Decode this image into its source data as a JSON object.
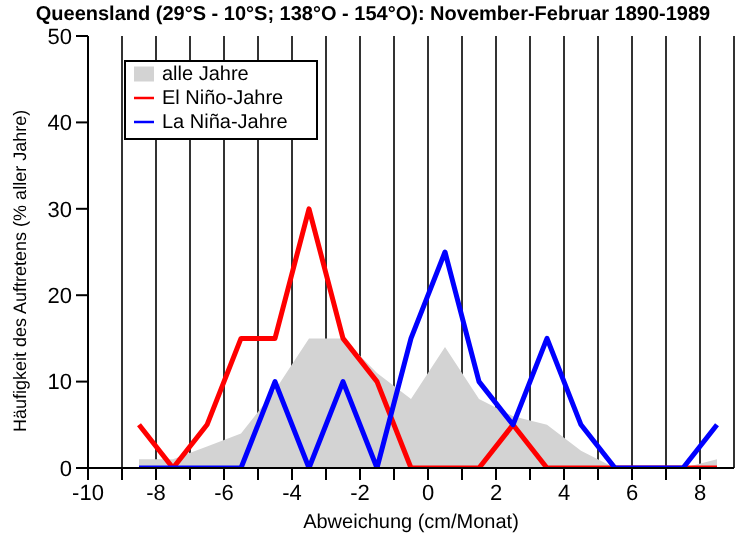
{
  "chart_data": {
    "type": "line",
    "title": "Queensland (29°S - 10°S; 138°O - 154°O): November-Februar 1890-1989",
    "xlabel": "Abweichung (cm/Monat)",
    "ylabel": "Häufigkeit des Auftretens (% aller Jahre)",
    "x": [
      -8.5,
      -7.5,
      -6.5,
      -5.5,
      -4.5,
      -3.5,
      -2.5,
      -1.5,
      -0.5,
      0.5,
      1.5,
      2.5,
      3.5,
      4.5,
      5.5,
      6.5,
      7.5,
      8.5
    ],
    "series": [
      {
        "name": "alle Jahre",
        "type": "area",
        "color": "#d3d3d3",
        "values": [
          1,
          1,
          2.5,
          4,
          9,
          15,
          15,
          11,
          8,
          14,
          8,
          6,
          5,
          2,
          0,
          0,
          0,
          1
        ]
      },
      {
        "name": "El Niño-Jahre",
        "color": "#ff0000",
        "values": [
          5,
          0,
          5,
          15,
          15,
          30,
          15,
          10,
          0,
          0,
          0,
          5,
          0,
          0,
          0,
          0,
          0,
          0
        ]
      },
      {
        "name": "La Niña-Jahre",
        "color": "#0000ff",
        "values": [
          0,
          0,
          0,
          0,
          10,
          0,
          10,
          0,
          15,
          25,
          10,
          5,
          15,
          5,
          0,
          0,
          0,
          5
        ]
      }
    ],
    "xlim": [
      -10,
      9
    ],
    "xticks": [
      -10,
      {
        "value": -9,
        "label": null
      },
      -8,
      {
        "value": -7,
        "label": null
      },
      -6,
      {
        "value": -5,
        "label": null
      },
      -4,
      {
        "value": -3,
        "label": null
      },
      -2,
      {
        "value": -1,
        "label": null
      },
      0,
      {
        "value": 1,
        "label": null
      },
      2,
      {
        "value": 3,
        "label": null
      },
      4,
      {
        "value": 5,
        "label": null
      },
      6,
      {
        "value": 7,
        "label": null
      },
      8
    ],
    "ylim": [
      0,
      50
    ],
    "yticks": [
      0,
      10,
      20,
      30,
      40,
      50
    ],
    "grid": "x",
    "legend": "top left",
    "marker": "none",
    "line_style": "solid"
  }
}
